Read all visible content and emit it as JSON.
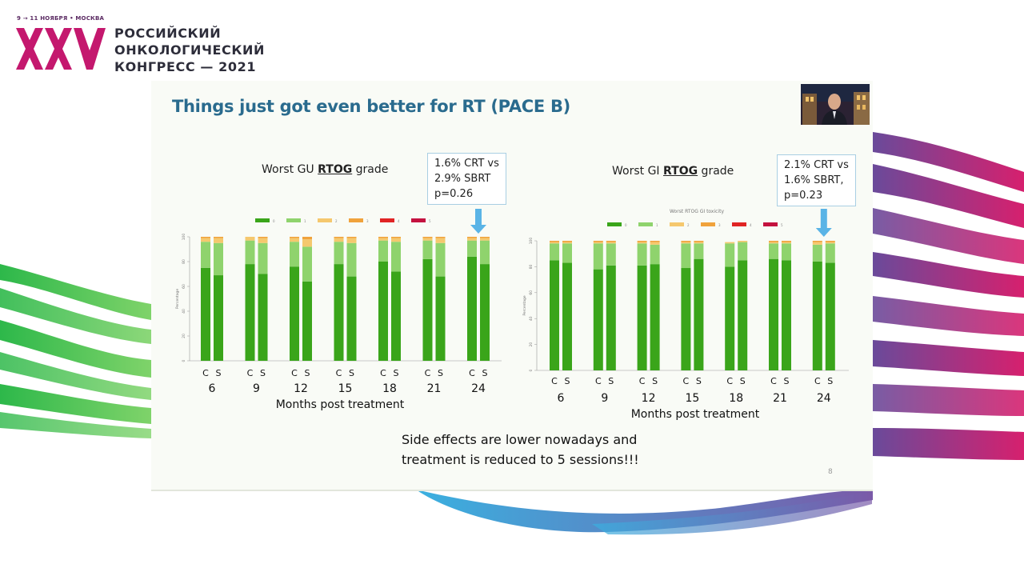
{
  "congress": {
    "date_line": "9 → 11 НОЯБРЯ • МОСКВА",
    "numeral": "XXV",
    "title_lines": [
      "РОССИЙСКИЙ",
      "ОНКОЛОГИЧЕСКИЙ",
      "КОНГРЕСС — 2021"
    ],
    "brand_color": "#c4186e"
  },
  "slide": {
    "title": "Things just got even better for RT (PACE B)",
    "page_number": "8",
    "footer_lines": [
      "Side effects are lower nowadays and",
      "treatment is reduced to 5 sessions!!!"
    ]
  },
  "charts": {
    "gu": {
      "heading_prefix": "Worst GU ",
      "heading_rtog": "RTOG",
      "heading_suffix": " grade",
      "note_lines": [
        "1.6% CRT vs",
        "2.9% SBRT",
        "p=0.26"
      ]
    },
    "gi": {
      "heading_prefix": "Worst GI ",
      "heading_rtog": "RTOG",
      "heading_suffix": " grade",
      "note_lines": [
        "2.1% CRT vs",
        "1.6% SBRT,",
        "p=0.23"
      ]
    }
  },
  "chart_data": [
    {
      "type": "bar",
      "stacked": true,
      "title": "Worst GU RTOG grade",
      "xlabel": "Months post treatment",
      "ylabel": "Percentage",
      "ylim": [
        0,
        100
      ],
      "yticks": [
        0,
        20,
        40,
        60,
        80,
        100
      ],
      "groups": [
        "6",
        "9",
        "12",
        "15",
        "18",
        "21",
        "24"
      ],
      "bar_labels": [
        "C",
        "S"
      ],
      "legend_labels": [
        "0",
        "1",
        "2",
        "3",
        "4",
        "5"
      ],
      "series_colors": [
        "#3aa51a",
        "#8fd36d",
        "#f5c86e",
        "#f0a23c",
        "#e02424",
        "#c4123f"
      ],
      "series": [
        {
          "name": "0",
          "values": [
            75,
            69,
            78,
            70,
            76,
            64,
            78,
            68,
            80,
            72,
            82,
            68,
            84,
            78
          ]
        },
        {
          "name": "1",
          "values": [
            21,
            26,
            19,
            25,
            20,
            28,
            18,
            27,
            17,
            24,
            15,
            27,
            13,
            19
          ]
        },
        {
          "name": "2",
          "values": [
            3,
            4,
            3,
            4,
            3,
            6,
            3,
            4,
            2,
            3,
            2,
            4,
            2,
            2
          ]
        },
        {
          "name": "3",
          "values": [
            1,
            1,
            0,
            1,
            1,
            2,
            1,
            1,
            1,
            1,
            1,
            1,
            1,
            1
          ]
        },
        {
          "name": "4",
          "values": [
            0,
            0,
            0,
            0,
            0,
            0,
            0,
            0,
            0,
            0,
            0,
            0,
            0,
            0
          ]
        },
        {
          "name": "5",
          "values": [
            0,
            0,
            0,
            0,
            0,
            0,
            0,
            0,
            0,
            0,
            0,
            0,
            0,
            0
          ]
        }
      ],
      "legend_position": "top"
    },
    {
      "type": "bar",
      "stacked": true,
      "title": "Worst GI RTOG grade",
      "subtitle": "Worst RTOG GI toxicity",
      "xlabel": "Months post treatment",
      "ylabel": "Percentage",
      "ylim": [
        0,
        100
      ],
      "yticks": [
        0,
        20,
        40,
        60,
        80,
        100
      ],
      "groups": [
        "6",
        "9",
        "12",
        "15",
        "18",
        "21",
        "24"
      ],
      "bar_labels": [
        "C",
        "S"
      ],
      "legend_labels": [
        "0",
        "1",
        "2",
        "3",
        "4",
        "5"
      ],
      "series_colors": [
        "#3aa51a",
        "#8fd36d",
        "#f5c86e",
        "#f0a23c",
        "#e02424",
        "#c4123f"
      ],
      "series": [
        {
          "name": "0",
          "values": [
            85,
            83,
            78,
            81,
            81,
            82,
            79,
            86,
            80,
            85,
            86,
            85,
            84,
            83
          ]
        },
        {
          "name": "1",
          "values": [
            13,
            15,
            20,
            17,
            17,
            15,
            19,
            12,
            18,
            14,
            12,
            13,
            13,
            15
          ]
        },
        {
          "name": "2",
          "values": [
            1,
            1,
            1,
            1,
            1,
            2,
            1,
            1,
            1,
            1,
            1,
            1,
            2,
            1
          ]
        },
        {
          "name": "3",
          "values": [
            1,
            1,
            1,
            1,
            1,
            1,
            1,
            1,
            0,
            0,
            1,
            1,
            1,
            1
          ]
        },
        {
          "name": "4",
          "values": [
            0,
            0,
            0,
            0,
            0,
            0,
            0,
            0,
            0,
            0,
            0,
            0,
            0,
            0
          ]
        },
        {
          "name": "5",
          "values": [
            0,
            0,
            0,
            0,
            0,
            0,
            0,
            0,
            0,
            0,
            0,
            0,
            0,
            0
          ]
        }
      ],
      "legend_position": "top"
    }
  ]
}
